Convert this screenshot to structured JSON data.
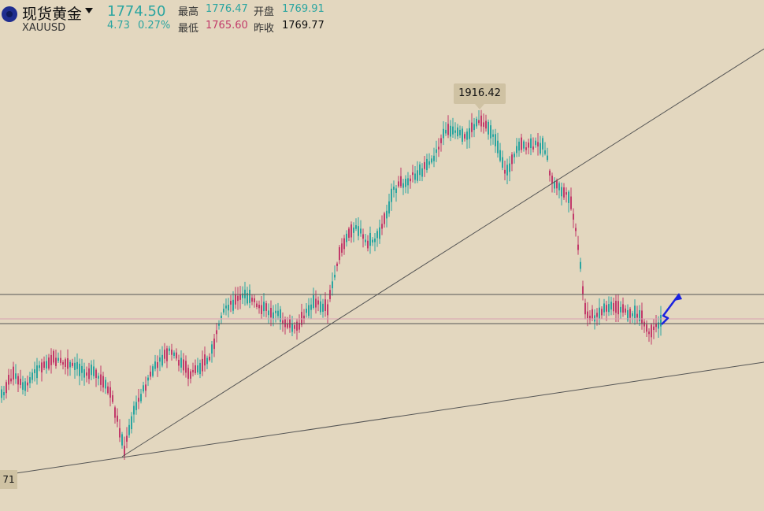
{
  "header": {
    "name": "现货黄金",
    "symbol": "XAUUSD",
    "price": "1774.50",
    "change": "4.73",
    "change_pct": "0.27%",
    "high_label": "最高",
    "high": "1776.47",
    "open_label": "开盘",
    "open": "1769.91",
    "low_label": "最低",
    "low": "1765.60",
    "prev_close_label": "昨收",
    "prev_close": "1769.77"
  },
  "chart_data": {
    "type": "candlestick",
    "peak_label": "1916.42",
    "low_label": "71",
    "up_color": "#2aa5a0",
    "down_color": "#c23a6a",
    "drawing_color": "#1a22e0"
  }
}
